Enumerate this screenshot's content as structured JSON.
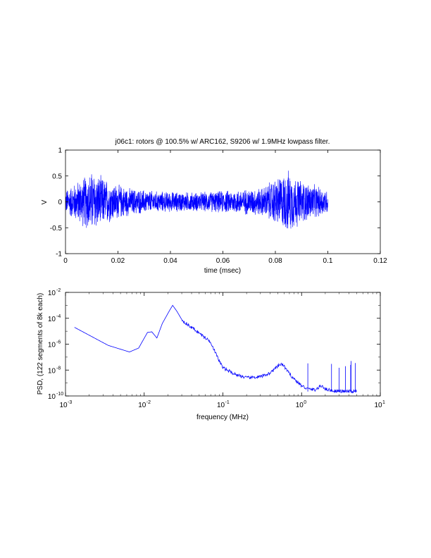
{
  "chart_data": [
    {
      "type": "line",
      "title": "j06c1: rotors @ 100.5% w/ ARC162, S9206 w/ 1.9MHz lowpass filter.",
      "xlabel": "time (msec)",
      "ylabel": "V",
      "xlim": [
        0,
        0.12
      ],
      "ylim": [
        -1,
        1
      ],
      "xticks": [
        0,
        0.02,
        0.04,
        0.06,
        0.08,
        0.1,
        0.12
      ],
      "xtick_labels": [
        "0",
        "0.02",
        "0.04",
        "0.06",
        "0.08",
        "0.1",
        "0.12"
      ],
      "yticks": [
        1,
        0.5,
        0,
        -0.5,
        -1
      ],
      "ytick_labels": [
        "1",
        "0.5",
        "0",
        "-0.5",
        "-1"
      ],
      "grid": false,
      "series_color": "#0000ff",
      "signal_x_range": [
        0,
        0.1
      ],
      "envelope": {
        "x": [
          0,
          0.005,
          0.01,
          0.013,
          0.018,
          0.025,
          0.035,
          0.05,
          0.065,
          0.075,
          0.08,
          0.085,
          0.09,
          0.1
        ],
        "amplitude": [
          0.25,
          0.45,
          0.65,
          0.55,
          0.4,
          0.28,
          0.22,
          0.2,
          0.25,
          0.3,
          0.5,
          0.65,
          0.45,
          0.25
        ]
      }
    },
    {
      "type": "line",
      "title": "",
      "xlabel": "frequency (MHz)",
      "ylabel": "PSD, (122 segments of 8k each)",
      "xscale": "log",
      "yscale": "log",
      "xlim": [
        0.001,
        10
      ],
      "ylim": [
        1e-10,
        0.01
      ],
      "xtick_base": "10",
      "xtick_exponents": [
        "-3",
        "-2",
        "-1",
        "0",
        "1"
      ],
      "ytick_base": "10",
      "ytick_exponents": [
        "-2",
        "-4",
        "-6",
        "-8",
        "-10"
      ],
      "grid": false,
      "series_color": "#0000ff",
      "x": [
        0.0013,
        0.0035,
        0.0065,
        0.0085,
        0.011,
        0.0125,
        0.0145,
        0.017,
        0.021,
        0.023,
        0.026,
        0.03,
        0.036,
        0.045,
        0.06,
        0.07,
        0.085,
        0.1,
        0.14,
        0.2,
        0.3,
        0.4,
        0.5,
        0.55,
        0.6,
        0.7,
        0.85,
        1.0,
        1.2,
        1.5,
        1.7,
        1.85,
        2.0,
        2.5,
        3.0,
        4.0,
        5.0
      ],
      "y": [
        2e-05,
        8e-07,
        2.5e-07,
        5e-07,
        8e-06,
        9e-06,
        3e-06,
        4e-05,
        0.0004,
        0.001,
        0.00035,
        8e-05,
        3e-05,
        1.2e-05,
        3e-06,
        1.5e-06,
        1e-07,
        1.5e-08,
        5e-09,
        2.5e-09,
        3e-09,
        6e-09,
        2e-08,
        3e-08,
        2e-08,
        5e-09,
        1.5e-09,
        6e-10,
        3.5e-10,
        3e-10,
        5e-10,
        6e-10,
        3.5e-10,
        2.5e-10,
        2.3e-10,
        2.2e-10,
        2.2e-10
      ],
      "spikes": [
        {
          "x": 1.2,
          "y": 3.3e-08
        },
        {
          "x": 2.4,
          "y": 3e-08
        },
        {
          "x": 3.0,
          "y": 1.5e-08
        },
        {
          "x": 3.6,
          "y": 2e-08
        },
        {
          "x": 4.2,
          "y": 2.5e-08
        },
        {
          "x": 4.25,
          "y": 5e-08
        },
        {
          "x": 4.8,
          "y": 3.5e-08
        }
      ]
    }
  ]
}
